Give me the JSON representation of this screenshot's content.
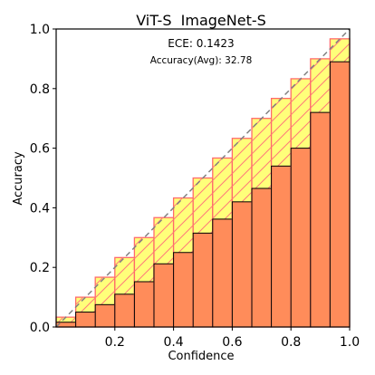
{
  "chart_data": {
    "type": "bar",
    "title": "ViT-S  ImageNet-S",
    "xlabel": "Confidence",
    "ylabel": "Accuracy",
    "annotations": {
      "ece": "ECE: 0.1423",
      "accuracy": "Accuracy(Avg): 32.78"
    },
    "xlim": [
      0,
      1
    ],
    "ylim": [
      0,
      1
    ],
    "x_ticks": [
      0.2,
      0.4,
      0.6,
      0.8,
      1.0
    ],
    "x_tick_labels": [
      "0.2",
      "0.4",
      "0.6",
      "0.8",
      "1.0"
    ],
    "y_ticks": [
      0.0,
      0.2,
      0.4,
      0.6,
      0.8,
      1.0
    ],
    "y_tick_labels": [
      "0.0",
      "0.2",
      "0.4",
      "0.6",
      "0.8",
      "1.0"
    ],
    "grid": false,
    "bin_edges": [
      0.0,
      0.0667,
      0.1333,
      0.2,
      0.2667,
      0.3333,
      0.4,
      0.4667,
      0.5333,
      0.6,
      0.6667,
      0.7333,
      0.8,
      0.8667,
      0.9333,
      1.0
    ],
    "series": [
      {
        "role": "accuracy",
        "values": [
          0.016,
          0.05,
          0.075,
          0.11,
          0.152,
          0.212,
          0.25,
          0.315,
          0.362,
          0.42,
          0.465,
          0.54,
          0.6,
          0.72,
          0.89
        ],
        "color": "#ff8c5a"
      },
      {
        "role": "gap",
        "values": [
          0.033,
          0.1,
          0.167,
          0.233,
          0.3,
          0.367,
          0.433,
          0.5,
          0.567,
          0.633,
          0.7,
          0.767,
          0.833,
          0.9,
          0.967
        ],
        "color": "#ffff7a",
        "edge_color": "#ff6a6a"
      }
    ],
    "reference_line": {
      "style": "dashed",
      "color": "#808080"
    }
  }
}
